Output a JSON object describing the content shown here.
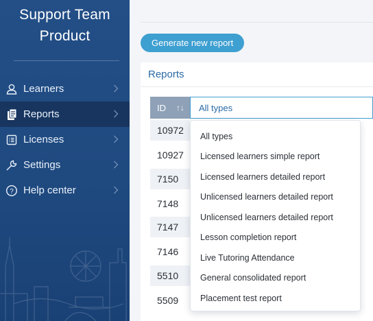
{
  "sidebar": {
    "brand_line1": "Support Team",
    "brand_line2": "Product",
    "items": [
      {
        "label": "Learners",
        "icon": "user-icon"
      },
      {
        "label": "Reports",
        "icon": "report-icon",
        "active": true
      },
      {
        "label": "Licenses",
        "icon": "license-icon"
      },
      {
        "label": "Settings",
        "icon": "wrench-icon"
      },
      {
        "label": "Help center",
        "icon": "question-icon"
      }
    ]
  },
  "main": {
    "generate_button": "Generate new report",
    "panel_title": "Reports",
    "table": {
      "id_header": "ID",
      "type_filter_value": "All types",
      "ids": [
        "10972",
        "10927",
        "7150",
        "7148",
        "7147",
        "7146",
        "5510",
        "5509"
      ]
    },
    "type_dropdown": {
      "options": [
        "All types",
        "Licensed learners simple report",
        "Licensed learners detailed report",
        "Unlicensed learners detailed report",
        "Unlicensed learners detailed report",
        "Lesson completion report",
        "Live Tutoring Attendance",
        "General consolidated report",
        "Placement test report"
      ]
    }
  },
  "colors": {
    "sidebar_bg": "#1f4a80",
    "sidebar_active": "#17355f",
    "accent": "#3e9fd1",
    "title_blue": "#2b6aa6",
    "header_gray": "#8fa1b7"
  }
}
